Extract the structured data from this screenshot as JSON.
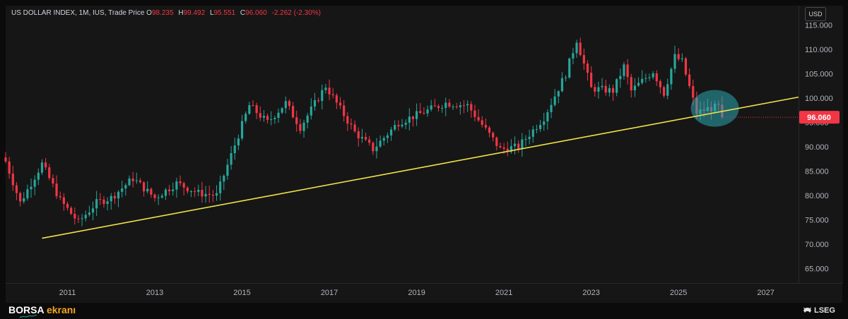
{
  "legend": {
    "symbol": "US DOLLAR INDEX, 1M, IUS, Trade Price",
    "o_label": "O",
    "o_value": "98.235",
    "h_label": "H",
    "h_value": "99.492",
    "l_label": "L",
    "l_value": "95.551",
    "c_label": "C",
    "c_value": "96.060",
    "change": "-2.262 (-2.30%)"
  },
  "currency": "USD",
  "last_price": {
    "label": "96.060",
    "value": 96.06,
    "color": "#f23645"
  },
  "brand": {
    "part1": "BORSA",
    "part2": "ekranı"
  },
  "provider": "LSEG",
  "colors": {
    "up": "#26a69a",
    "down": "#f23645",
    "trendline": "#f2e24a",
    "highlight": "#2aa8b0"
  },
  "chart_data": {
    "type": "candlestick",
    "interval": "1M",
    "ylim": [
      62,
      119
    ],
    "y_ticks": [
      65,
      70,
      75,
      80,
      85,
      90,
      95,
      100,
      105,
      110,
      115
    ],
    "y_tick_labels": [
      "65.000",
      "70.000",
      "75.000",
      "80.000",
      "85.000",
      "90.000",
      "95.000",
      "100.000",
      "105.000",
      "110.000",
      "115.000"
    ],
    "x_ticks": [
      "2011",
      "2013",
      "2015",
      "2017",
      "2019",
      "2021",
      "2023",
      "2025",
      "2027"
    ],
    "x_range": [
      "2009-08",
      "2027-10"
    ],
    "trendline": [
      [
        "2010-06",
        71.2
      ],
      [
        "2027-10",
        100.2
      ]
    ],
    "highlight": {
      "center": [
        "2025-11",
        97.9
      ],
      "note": "circle around recent candles"
    },
    "close_path": [
      [
        "2009-08",
        87
      ],
      [
        "2009-12",
        78.5
      ],
      [
        "2010-06",
        86.5
      ],
      [
        "2010-11",
        79
      ],
      [
        "2011-04",
        74.5
      ],
      [
        "2011-09",
        78.5
      ],
      [
        "2012-01",
        79.5
      ],
      [
        "2012-07",
        83.5
      ],
      [
        "2013-01",
        79.5
      ],
      [
        "2013-07",
        82.5
      ],
      [
        "2014-01",
        80.5
      ],
      [
        "2014-06",
        80
      ],
      [
        "2015-01",
        94.5
      ],
      [
        "2015-03",
        98.5
      ],
      [
        "2015-08",
        95
      ],
      [
        "2016-01",
        99
      ],
      [
        "2016-05",
        94
      ],
      [
        "2016-12",
        102.5
      ],
      [
        "2017-08",
        93
      ],
      [
        "2018-01",
        89.5
      ],
      [
        "2018-08",
        95
      ],
      [
        "2019-09",
        99
      ],
      [
        "2020-03",
        98.5
      ],
      [
        "2020-12",
        89.5
      ],
      [
        "2021-05",
        90
      ],
      [
        "2021-12",
        96
      ],
      [
        "2022-06",
        105
      ],
      [
        "2022-09",
        112
      ],
      [
        "2023-01",
        102
      ],
      [
        "2023-07",
        101.5
      ],
      [
        "2023-10",
        106.5
      ],
      [
        "2023-12",
        101.5
      ],
      [
        "2024-06",
        105.5
      ],
      [
        "2024-09",
        101
      ],
      [
        "2024-12",
        108.5
      ],
      [
        "2025-02",
        107.5
      ],
      [
        "2025-06",
        97
      ],
      [
        "2025-09",
        97.8
      ],
      [
        "2025-12",
        98.2
      ],
      [
        "2026-01",
        96.06
      ]
    ]
  }
}
